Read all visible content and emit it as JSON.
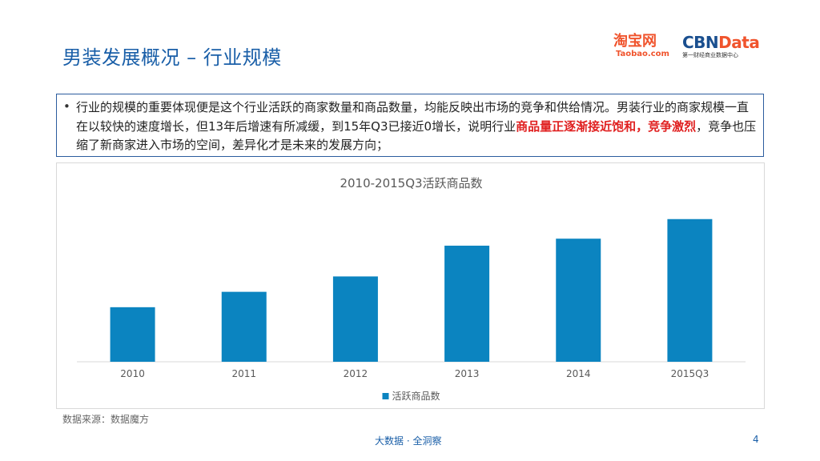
{
  "slide": {
    "title": "男装发展概况 – 行业规模",
    "logos": {
      "taobao_cn": "淘宝网",
      "taobao_en": "Taobao.com",
      "cbn_part1": "CBN",
      "cbn_part2": "Data",
      "cbn_sub": "第一财经商业数据中心"
    },
    "summary": {
      "bullet": "•",
      "text_before": "行业的规模的重要体现便是这个行业活跃的商家数量和商品数量，均能反映出市场的竞争和供给情况。男装行业的商家规模一直在以较快的速度增长，但13年后增速有所减缓，到15年Q3已接近0增长，说明行业",
      "highlight": "商品量正逐渐接近饱和，竞争激烈",
      "text_after": "，竞争也压缩了新商家进入市场的空间，差异化才是未来的发展方向；"
    },
    "source": "数据来源：数据魔方",
    "footer": "大数据 · 全洞察",
    "page_number": "4"
  },
  "colors": {
    "title": "#1a5fa8",
    "bar": "#0b84c0",
    "highlight": "#e02020",
    "box_border": "#2b5c9e"
  },
  "chart_data": {
    "type": "bar",
    "title": "2010-2015Q3活跃商品数",
    "categories": [
      "2010",
      "2011",
      "2012",
      "2013",
      "2014",
      "2015Q3"
    ],
    "series": [
      {
        "name": "活跃商品数",
        "values": [
          39,
          50,
          61,
          83,
          88,
          102
        ]
      }
    ],
    "ylim": [
      0,
      103
    ],
    "grid": false,
    "show_y_axis": false,
    "legend_position": "bottom"
  }
}
